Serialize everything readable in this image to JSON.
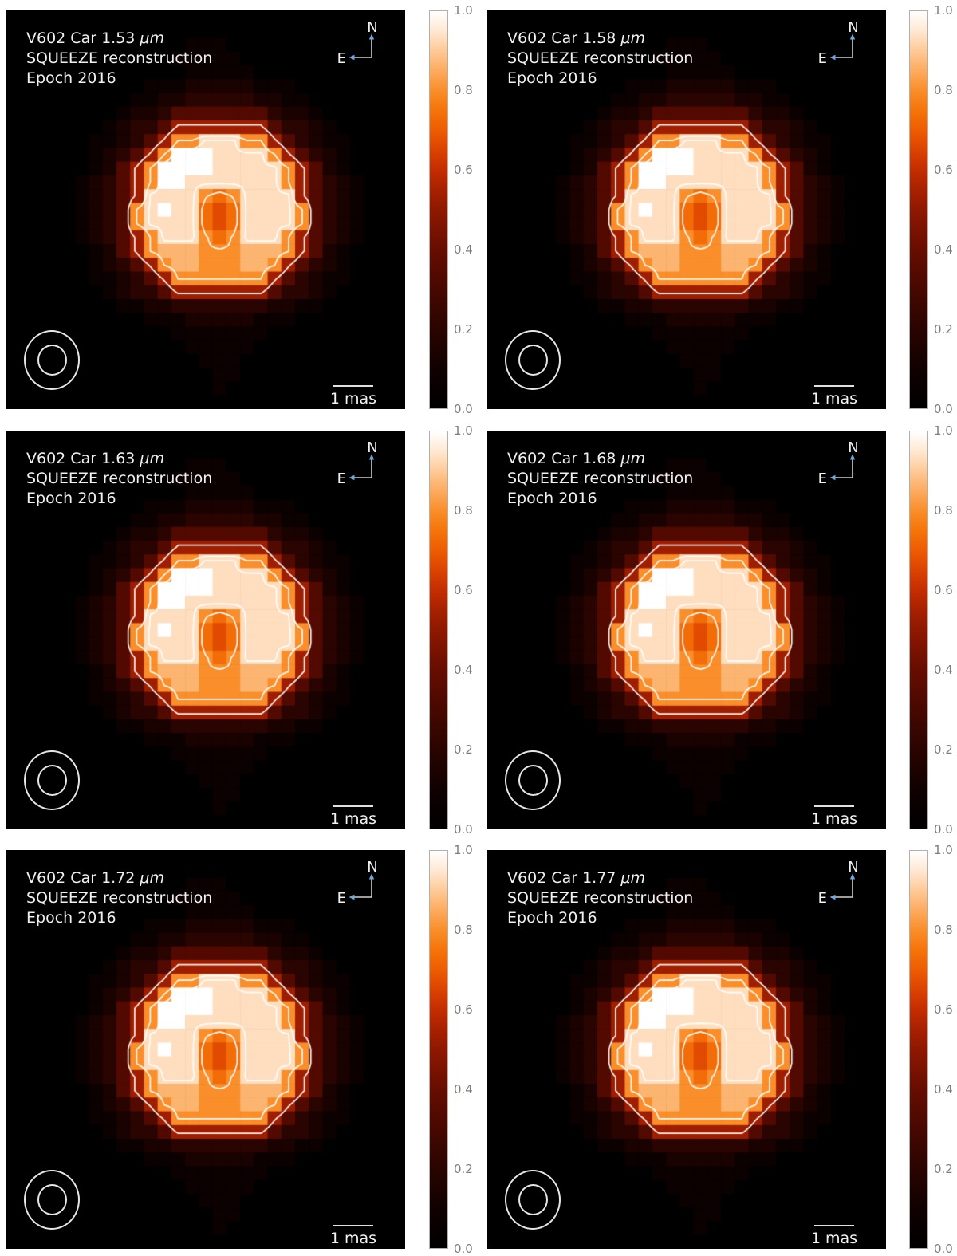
{
  "style": {
    "page_background": "#ffffff",
    "panel_background": "#000000",
    "panel_text_color": "#f0f0f0",
    "contour_color": "#ffffff",
    "tick_label_color": "#7d7d7d",
    "compass_line_color": "#d0d0d0",
    "compass_arrow_color": "#6fa8dc",
    "beam_outline_color": "#e6e6e6",
    "scale_bar_color": "#e0e0e0",
    "colorbar_border_color": "#b0b0b0",
    "colormap_stops": [
      [
        0.0,
        "#000000"
      ],
      [
        0.1,
        "#100100"
      ],
      [
        0.2,
        "#2a0400"
      ],
      [
        0.3,
        "#470800"
      ],
      [
        0.4,
        "#670d00"
      ],
      [
        0.5,
        "#8f1800"
      ],
      [
        0.55,
        "#a72100"
      ],
      [
        0.6,
        "#c42d00"
      ],
      [
        0.65,
        "#db4300"
      ],
      [
        0.7,
        "#ed5c02"
      ],
      [
        0.75,
        "#f5740a"
      ],
      [
        0.8,
        "#f98e2a"
      ],
      [
        0.85,
        "#fcab5e"
      ],
      [
        0.9,
        "#fdca96"
      ],
      [
        0.95,
        "#ffe8d2"
      ],
      [
        1.0,
        "#ffffff"
      ]
    ]
  },
  "shared_intensity_grid": {
    "note": "normalized image intensity, 29x29 cells, rows top-to-bottom; each hex digit 0-f maps to 0.0-1.0",
    "rows": [
      "00000000000000000000000000000",
      "00000000000000000000000000000",
      "00000000000001110000000000000",
      "00000000000011111000000000000",
      "00000000000001111100000000000",
      "00000000001112222211100000000",
      "00000000011223333322110000000",
      "00000000122355555553221000000",
      "00000001233588888885332100000",
      "000000112358cceeecc8532110000",
      "00000012358cfffeeeec853210000",
      "0000001258cffffeeeeec85210000",
      "0000012358cffeeeeeeec85321000",
      "0000012358eeeecbceeee85321000",
      "000001235cefeebabeeeec5321000",
      "000001235ceeeebabeeeec5321000",
      "0000012358ceeecbceeec85321000",
      "0000001258cdddcccdddc85210000",
      "00000012358cddcccddc853210000",
      "000000112358ccccccc8532110000",
      "00000001233588888885332100000",
      "00000000112233333332211000000",
      "00000000001112222211100000000",
      "00000000000011111110000000000",
      "00000000000001111100000000000",
      "00000000000000111000000000000",
      "00000000000000011000000000000",
      "00000000000000010000000000000",
      "00000000000000000000000000000"
    ]
  },
  "chart_data": [
    {
      "type": "heatmap",
      "title": "V602 Car 1.53",
      "title_unit": "μm",
      "line2": "SQUEEZE reconstruction",
      "line3": "Epoch 2016",
      "wavelength_um": 1.53,
      "compass": {
        "north": "N",
        "east": "E"
      },
      "scale_bar": {
        "label": "1 mas"
      },
      "colorbar": {
        "min": 0.0,
        "max": 1.0,
        "ticks": [
          "1.0",
          "0.8",
          "0.6",
          "0.4",
          "0.2",
          "0.0"
        ]
      },
      "contour_levels": [
        0.5,
        0.79,
        0.915
      ],
      "grid_ref": "shared_intensity_grid"
    },
    {
      "type": "heatmap",
      "title": "V602 Car 1.58",
      "title_unit": "μm",
      "line2": "SQUEEZE reconstruction",
      "line3": "Epoch 2016",
      "wavelength_um": 1.58,
      "compass": {
        "north": "N",
        "east": "E"
      },
      "scale_bar": {
        "label": "1 mas"
      },
      "colorbar": {
        "min": 0.0,
        "max": 1.0,
        "ticks": [
          "1.0",
          "0.8",
          "0.6",
          "0.4",
          "0.2",
          "0.0"
        ]
      },
      "contour_levels": [
        0.5,
        0.79,
        0.915
      ],
      "grid_ref": "shared_intensity_grid"
    },
    {
      "type": "heatmap",
      "title": "V602 Car 1.63",
      "title_unit": "μm",
      "line2": "SQUEEZE reconstruction",
      "line3": "Epoch 2016",
      "wavelength_um": 1.63,
      "compass": {
        "north": "N",
        "east": "E"
      },
      "scale_bar": {
        "label": "1 mas"
      },
      "colorbar": {
        "min": 0.0,
        "max": 1.0,
        "ticks": [
          "1.0",
          "0.8",
          "0.6",
          "0.4",
          "0.2",
          "0.0"
        ]
      },
      "contour_levels": [
        0.5,
        0.79,
        0.915
      ],
      "grid_ref": "shared_intensity_grid"
    },
    {
      "type": "heatmap",
      "title": "V602 Car 1.68",
      "title_unit": "μm",
      "line2": "SQUEEZE reconstruction",
      "line3": "Epoch 2016",
      "wavelength_um": 1.68,
      "compass": {
        "north": "N",
        "east": "E"
      },
      "scale_bar": {
        "label": "1 mas"
      },
      "colorbar": {
        "min": 0.0,
        "max": 1.0,
        "ticks": [
          "1.0",
          "0.8",
          "0.6",
          "0.4",
          "0.2",
          "0.0"
        ]
      },
      "contour_levels": [
        0.5,
        0.79,
        0.915
      ],
      "grid_ref": "shared_intensity_grid"
    },
    {
      "type": "heatmap",
      "title": "V602 Car 1.72",
      "title_unit": "μm",
      "line2": "SQUEEZE reconstruction",
      "line3": "Epoch 2016",
      "wavelength_um": 1.72,
      "compass": {
        "north": "N",
        "east": "E"
      },
      "scale_bar": {
        "label": "1 mas"
      },
      "colorbar": {
        "min": 0.0,
        "max": 1.0,
        "ticks": [
          "1.0",
          "0.8",
          "0.6",
          "0.4",
          "0.2",
          "0.0"
        ]
      },
      "contour_levels": [
        0.5,
        0.79,
        0.915
      ],
      "grid_ref": "shared_intensity_grid"
    },
    {
      "type": "heatmap",
      "title": "V602 Car 1.77",
      "title_unit": "μm",
      "line2": "SQUEEZE reconstruction",
      "line3": "Epoch 2016",
      "wavelength_um": 1.77,
      "compass": {
        "north": "N",
        "east": "E"
      },
      "scale_bar": {
        "label": "1 mas"
      },
      "colorbar": {
        "min": 0.0,
        "max": 1.0,
        "ticks": [
          "1.0",
          "0.8",
          "0.6",
          "0.4",
          "0.2",
          "0.0"
        ]
      },
      "contour_levels": [
        0.5,
        0.79,
        0.915
      ],
      "grid_ref": "shared_intensity_grid"
    }
  ]
}
